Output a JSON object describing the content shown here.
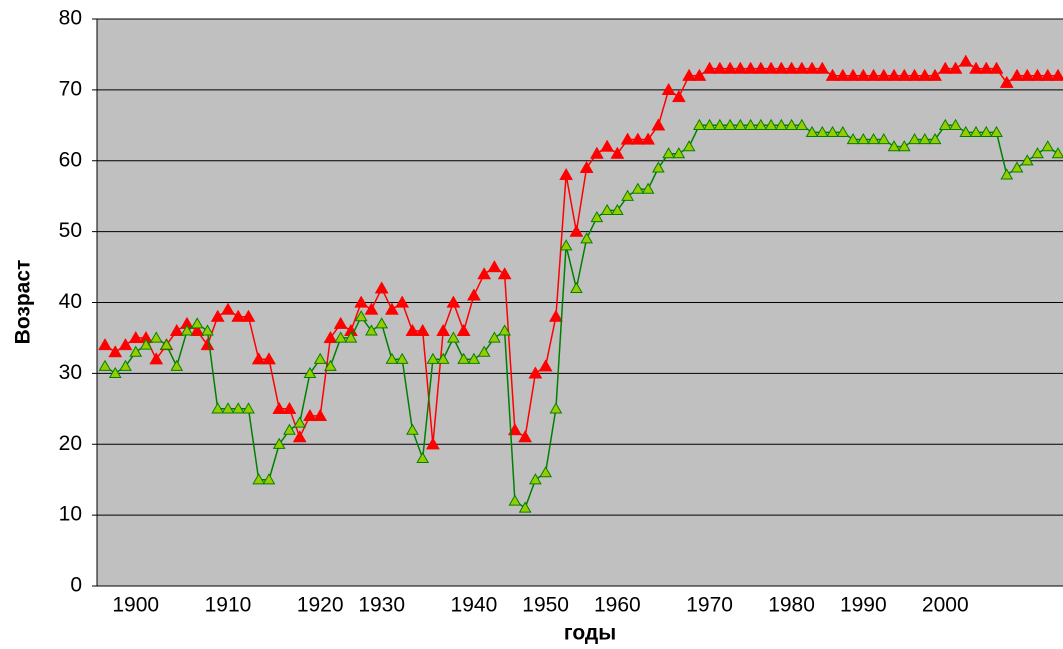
{
  "chart_data": {
    "type": "line",
    "x_label": "годы",
    "y_label": "Возраст",
    "categories": [
      null,
      null,
      null,
      "1900",
      null,
      null,
      null,
      null,
      null,
      null,
      null,
      null,
      "1910",
      null,
      null,
      null,
      null,
      null,
      null,
      null,
      null,
      "1920",
      null,
      null,
      null,
      null,
      null,
      "1930",
      null,
      null,
      null,
      null,
      null,
      null,
      null,
      null,
      "1940",
      null,
      null,
      null,
      null,
      null,
      null,
      "1950",
      null,
      null,
      null,
      null,
      null,
      null,
      "1960",
      null,
      null,
      null,
      null,
      null,
      null,
      null,
      null,
      "1970",
      null,
      null,
      null,
      null,
      null,
      null,
      null,
      "1980",
      null,
      null,
      null,
      null,
      null,
      null,
      "1990",
      null,
      null,
      null,
      null,
      null,
      null,
      null,
      "2000",
      null,
      null,
      null,
      null,
      null,
      null,
      null,
      null,
      null,
      null,
      null
    ],
    "series": [
      {
        "color": "#ff0000",
        "marker_color": "#ff0000",
        "values": [
          34,
          33,
          34,
          35,
          35,
          32,
          34,
          36,
          37,
          36,
          34,
          38,
          39,
          38,
          38,
          32,
          32,
          25,
          25,
          21,
          24,
          24,
          35,
          37,
          36,
          40,
          39,
          42,
          39,
          40,
          36,
          36,
          20,
          36,
          40,
          36,
          41,
          44,
          45,
          44,
          22,
          21,
          30,
          31,
          38,
          58,
          50,
          59,
          61,
          62,
          61,
          63,
          63,
          63,
          65,
          70,
          69,
          72,
          72,
          73,
          73,
          73,
          73,
          73,
          73,
          73,
          73,
          73,
          73,
          73,
          73,
          72,
          72,
          72,
          72,
          72,
          72,
          72,
          72,
          72,
          72,
          72,
          73,
          73,
          74,
          73,
          73,
          73,
          71,
          72,
          72,
          72,
          72,
          72
        ]
      },
      {
        "color": "#008000",
        "marker_color": "#99cc00",
        "values": [
          31,
          30,
          31,
          33,
          34,
          35,
          34,
          31,
          36,
          37,
          36,
          25,
          25,
          25,
          25,
          15,
          15,
          20,
          22,
          23,
          30,
          32,
          31,
          35,
          35,
          38,
          36,
          37,
          32,
          32,
          22,
          18,
          32,
          32,
          35,
          32,
          32,
          33,
          35,
          36,
          12,
          11,
          15,
          16,
          25,
          48,
          42,
          49,
          52,
          53,
          53,
          55,
          56,
          56,
          59,
          61,
          61,
          62,
          65,
          65,
          65,
          65,
          65,
          65,
          65,
          65,
          65,
          65,
          65,
          64,
          64,
          64,
          64,
          63,
          63,
          63,
          63,
          62,
          62,
          63,
          63,
          63,
          65,
          65,
          64,
          64,
          64,
          64,
          58,
          59,
          60,
          61,
          62,
          61
        ]
      }
    ],
    "ylim": [
      0,
      80
    ],
    "yticks": [
      0,
      10,
      20,
      30,
      40,
      50,
      60,
      70,
      80
    ],
    "grid": true,
    "plot_background": "#c0c0c0"
  }
}
